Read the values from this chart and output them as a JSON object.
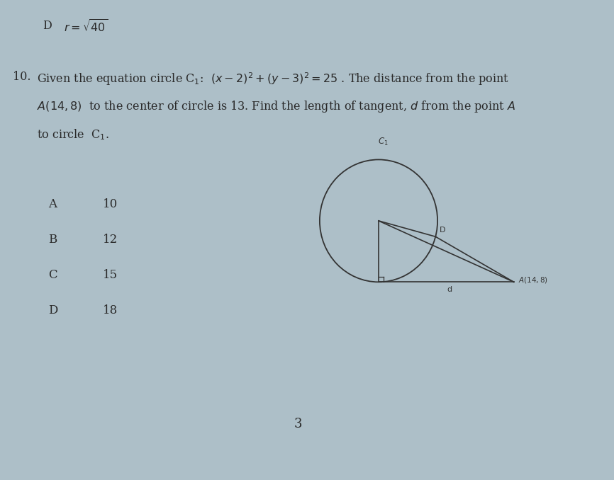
{
  "background_color": "#adbfc8",
  "text_color": "#2a2a2a",
  "diagram_line_color": "#333333",
  "options": [
    {
      "label": "A",
      "value": "10"
    },
    {
      "label": "B",
      "value": "12"
    },
    {
      "label": "C",
      "value": "15"
    },
    {
      "label": "D",
      "value": "18"
    }
  ],
  "page_number": "3",
  "fs_main": 11.5,
  "fs_opt": 12
}
